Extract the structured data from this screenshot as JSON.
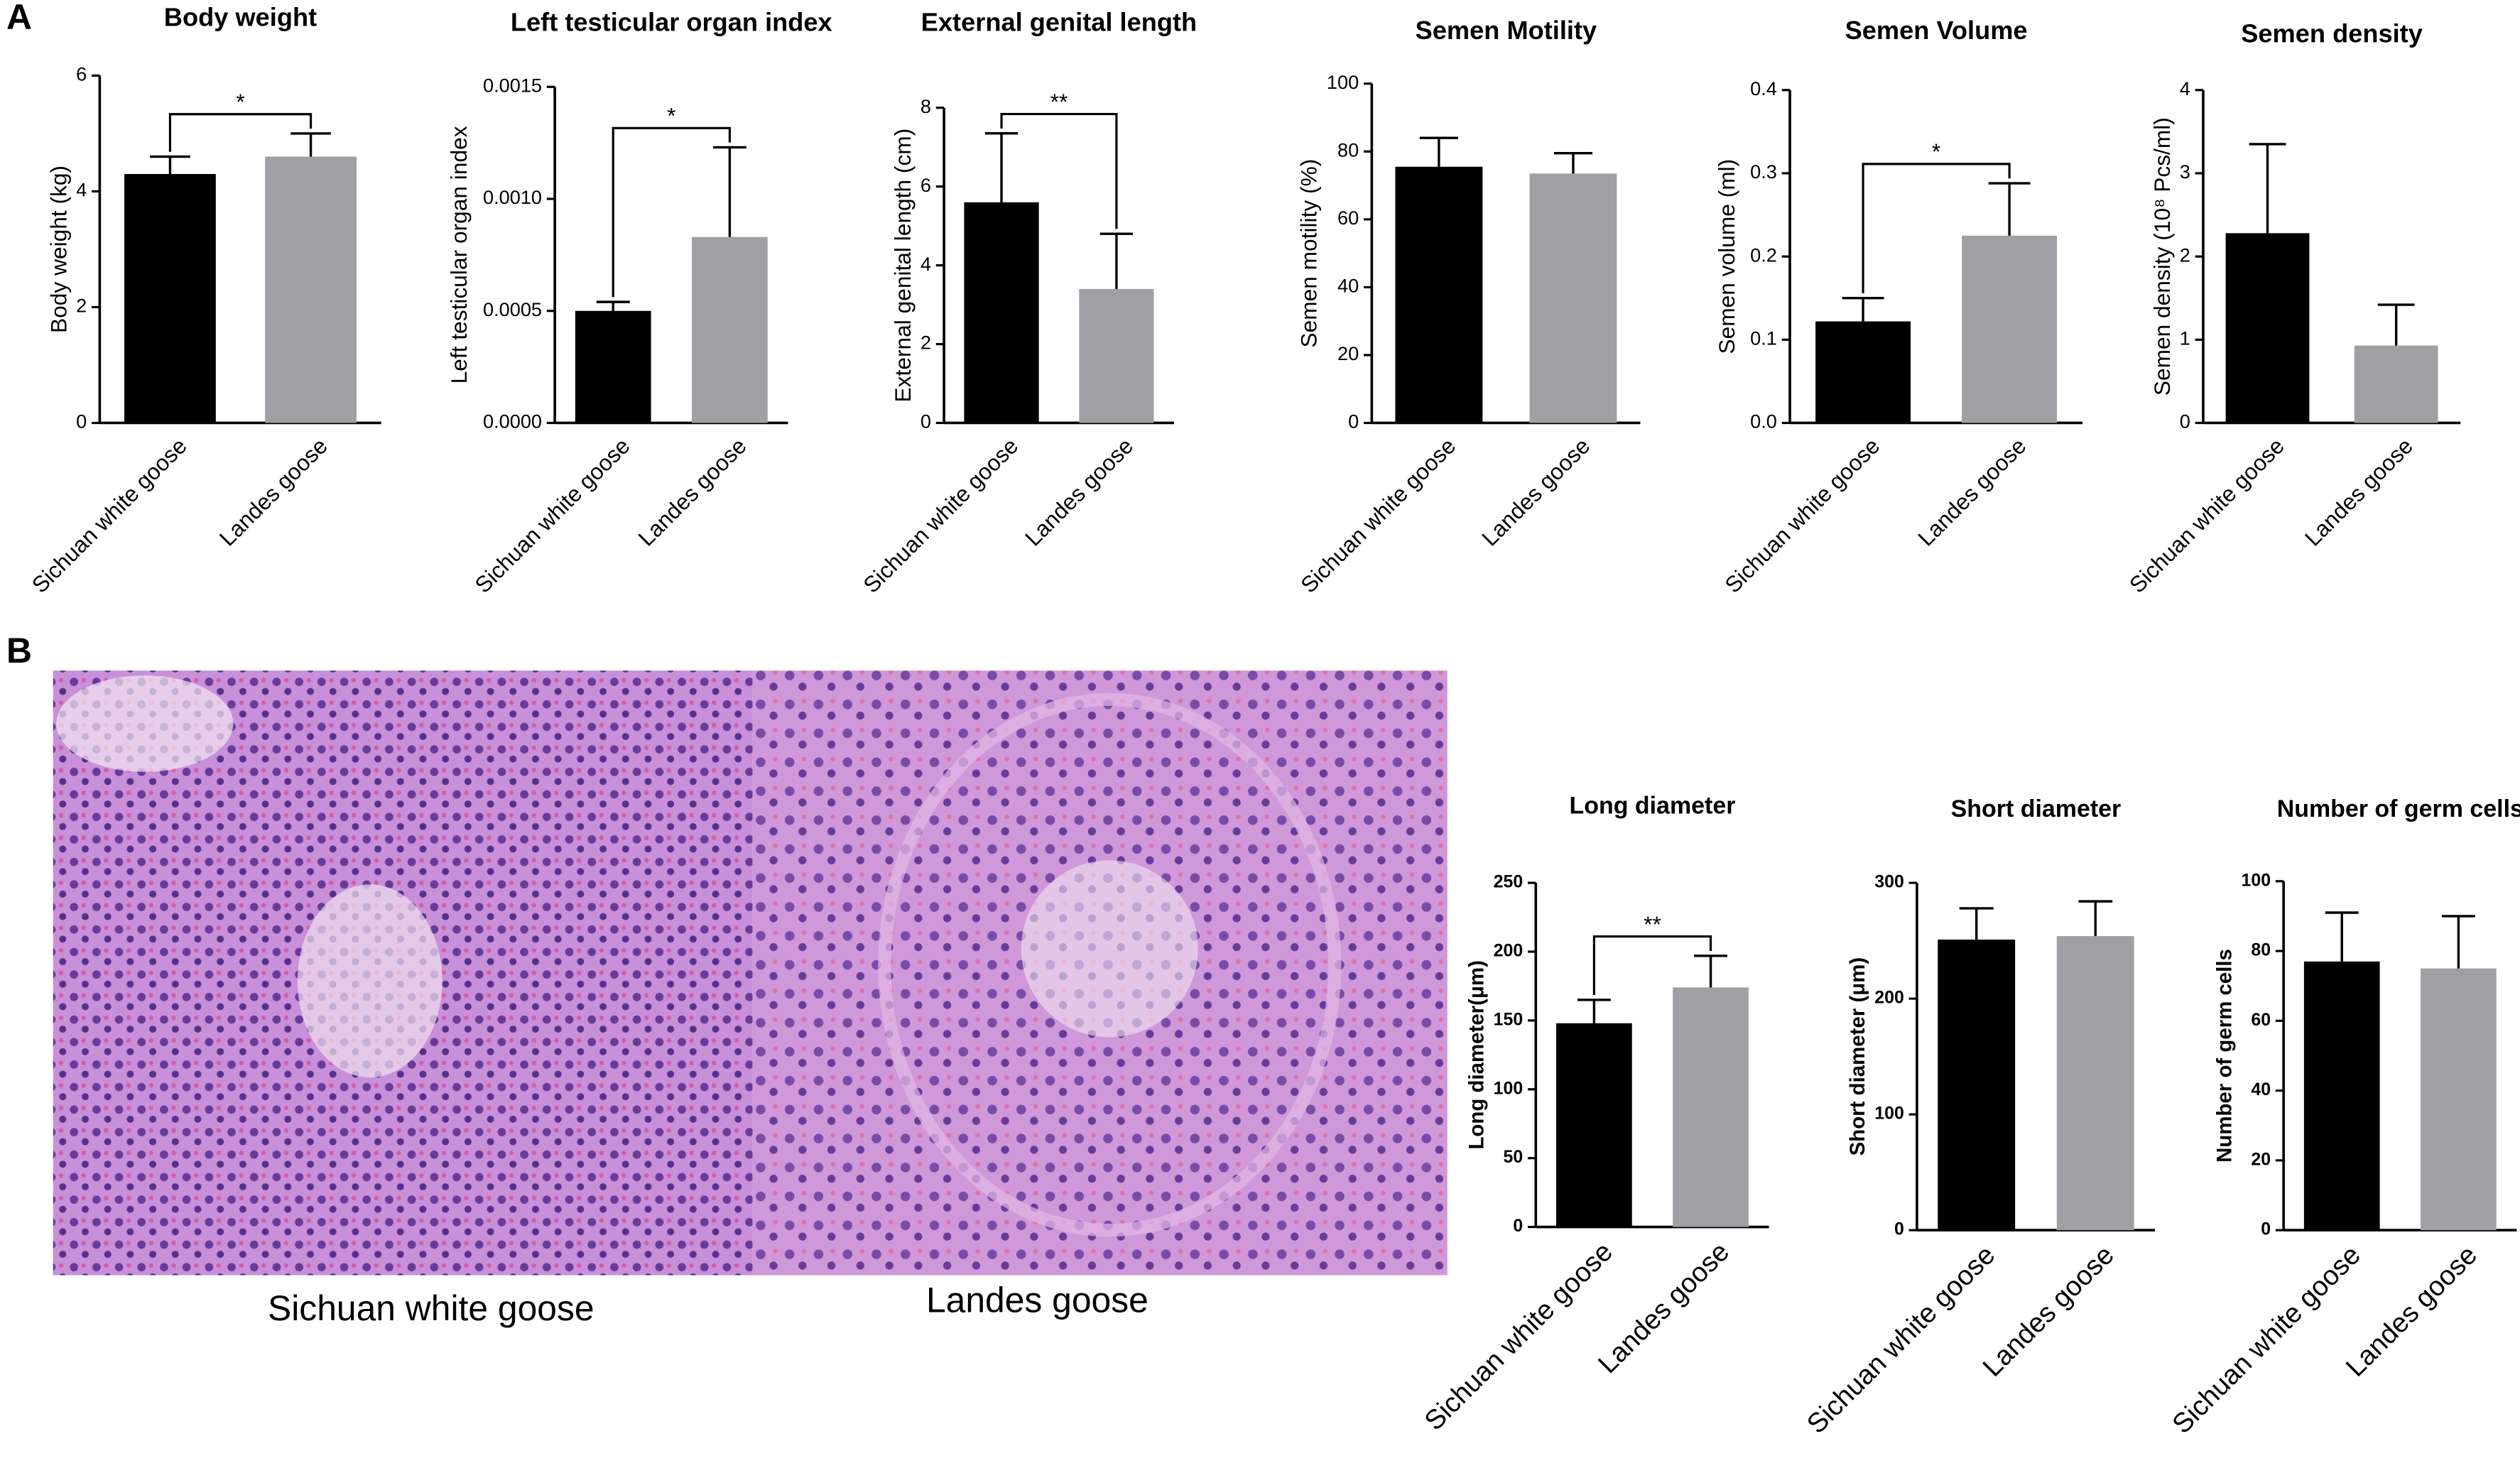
{
  "panel_labels": [
    "A",
    "B"
  ],
  "image_captions": [
    "Sichuan white goose",
    "Landes goose"
  ],
  "chart_data": [
    {
      "type": "bar",
      "title": "Body weight",
      "y_label": "Body weight (kg)",
      "categories": [
        "Sichuan white goose",
        "Landes goose"
      ],
      "values": [
        4.3,
        4.6
      ],
      "errors": [
        0.3,
        0.4
      ],
      "colors": [
        "#000000",
        "#a0a0a4"
      ],
      "ylim": [
        0,
        6
      ],
      "yticks": [
        0,
        2,
        4,
        6
      ],
      "significance": "*"
    },
    {
      "type": "bar",
      "title": "Left testicular organ index",
      "y_label": "Left testicular organ index",
      "categories": [
        "Sichuan white goose",
        "Landes goose"
      ],
      "values": [
        0.0005,
        0.00083
      ],
      "errors": [
        4e-05,
        0.0004
      ],
      "colors": [
        "#000000",
        "#a0a0a4"
      ],
      "ylim": [
        0,
        0.0015
      ],
      "yticks": [
        {
          "value": 0,
          "label": "0.0000"
        },
        {
          "value": 0.0005,
          "label": "0.0005"
        },
        {
          "value": 0.001,
          "label": "0.0010"
        },
        {
          "value": 0.0015,
          "label": "0.0015"
        }
      ],
      "significance": "*"
    },
    {
      "type": "bar",
      "title": "External genital length",
      "y_label": "External genital length (cm)",
      "categories": [
        "Sichuan white goose",
        "Landes goose"
      ],
      "values": [
        5.6,
        3.4
      ],
      "errors": [
        1.75,
        1.4
      ],
      "colors": [
        "#000000",
        "#a0a0a4"
      ],
      "ylim": [
        0,
        8
      ],
      "yticks": [
        0,
        2,
        4,
        6,
        8
      ],
      "significance": "**"
    },
    {
      "type": "bar",
      "title": "Semen Motility",
      "y_label": "Semen motility (%)",
      "categories": [
        "Sichuan white goose",
        "Landes goose"
      ],
      "values": [
        75.5,
        73.5
      ],
      "errors": [
        8.5,
        6
      ],
      "colors": [
        "#000000",
        "#a0a0a4"
      ],
      "ylim": [
        0,
        100
      ],
      "yticks": [
        0,
        20,
        40,
        60,
        80,
        100
      ]
    },
    {
      "type": "bar",
      "title": "Semen Volume",
      "y_label": "Semen volume (ml)",
      "categories": [
        "Sichuan white goose",
        "Landes goose"
      ],
      "values": [
        0.122,
        0.225
      ],
      "errors": [
        0.028,
        0.063
      ],
      "colors": [
        "#000000",
        "#a0a0a4"
      ],
      "ylim": [
        0,
        0.4
      ],
      "yticks": [
        {
          "value": 0,
          "label": "0.0"
        },
        0.1,
        0.2,
        0.3,
        0.4
      ],
      "significance": "*"
    },
    {
      "type": "bar",
      "title": "Semen density",
      "y_label": "Semen density (10⁸ Pcs/ml)",
      "categories": [
        "Sichuan white goose",
        "Landes goose"
      ],
      "values": [
        2.28,
        0.93
      ],
      "errors": [
        1.07,
        0.49
      ],
      "colors": [
        "#000000",
        "#a0a0a4"
      ],
      "ylim": [
        0,
        4
      ],
      "yticks": [
        0,
        1,
        2,
        3,
        4
      ]
    },
    {
      "type": "bar",
      "title": "Long diameter",
      "y_label": "Long diameter(μm)",
      "categories": [
        "Sichuan white goose",
        "Landes goose"
      ],
      "values": [
        148,
        174
      ],
      "errors": [
        17,
        23
      ],
      "colors": [
        "#000000",
        "#a0a0a4"
      ],
      "ylim": [
        0,
        250
      ],
      "yticks": [
        0,
        50,
        100,
        150,
        200,
        250
      ],
      "significance": "**"
    },
    {
      "type": "bar",
      "title": "Short diameter",
      "y_label": "Short diameter (μm)",
      "categories": [
        "Sichuan white goose",
        "Landes goose"
      ],
      "values": [
        251,
        254
      ],
      "errors": [
        27,
        30
      ],
      "colors": [
        "#000000",
        "#a0a0a4"
      ],
      "ylim": [
        0,
        300
      ],
      "yticks": [
        0,
        100,
        200,
        300
      ]
    },
    {
      "type": "bar",
      "title": "Number of germ cells",
      "y_label": "Number of germ cells",
      "categories": [
        "Sichuan white goose",
        "Landes goose"
      ],
      "values": [
        77,
        75
      ],
      "errors": [
        14,
        15
      ],
      "colors": [
        "#000000",
        "#a0a0a4"
      ],
      "ylim": [
        0,
        100
      ],
      "yticks": [
        0,
        20,
        40,
        60,
        80,
        100
      ]
    }
  ]
}
